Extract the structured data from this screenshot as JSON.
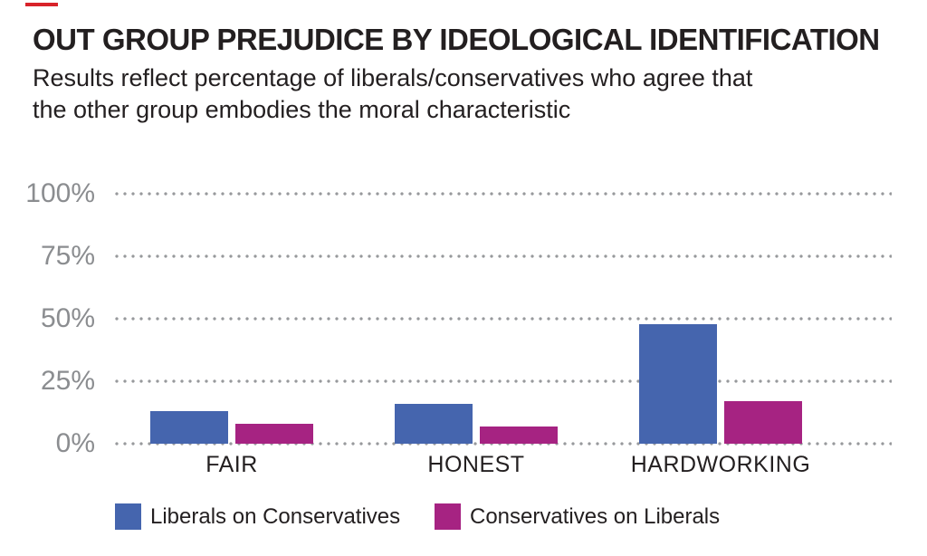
{
  "accent_color": "#D8232A",
  "text_color": "#231F20",
  "axis_label_color": "#8B8D90",
  "gridline_dot_color": "#97999C",
  "header": {
    "title": "OUT GROUP PREJUDICE BY IDEOLOGICAL IDENTIFICATION",
    "subtitle_lines": [
      "Results reflect percentage of liberals/conservatives who agree that",
      "the other group embodies the moral characteristic"
    ]
  },
  "chart_data": {
    "type": "bar",
    "title": "OUT GROUP PREJUDICE BY IDEOLOGICAL IDENTIFICATION",
    "subtitle": "Results reflect percentage of liberals/conservatives who agree that the other group embodies the moral characteristic",
    "categories": [
      "FAIR",
      "HONEST",
      "HARDWORKING"
    ],
    "series": [
      {
        "name": "Liberals on Conservatives",
        "color": "#4565AE",
        "values": [
          13,
          16,
          48
        ]
      },
      {
        "name": "Conservatives on Liberals",
        "color": "#A62382",
        "values": [
          8,
          7,
          17
        ]
      }
    ],
    "unit": "%",
    "ylim": [
      0,
      100
    ],
    "yticks": [
      0,
      25,
      50,
      75,
      100
    ],
    "ytick_labels": [
      "0%",
      "25%",
      "50%",
      "75%",
      "100%"
    ],
    "grid": "horizontal-dotted",
    "legend_position": "bottom"
  }
}
